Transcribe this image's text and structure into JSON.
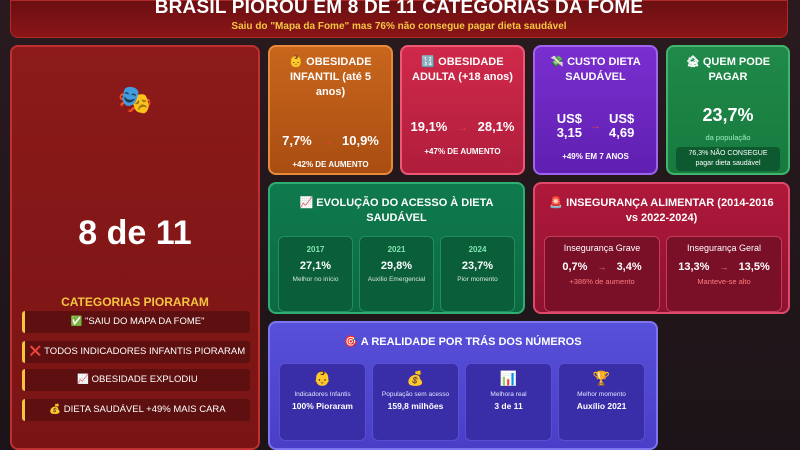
{
  "header": {
    "title": "BRASIL PIOROU EM 8 DE 11 CATEGORIAS DA FOME",
    "subtitle": "Saiu do \"Mapa da Fome\" mas 76% não consegue pagar dieta saudável"
  },
  "left": {
    "icon": "🎭",
    "big": "8 de 11",
    "label": "CATEGORIAS PIORARAM",
    "pills": [
      "✅ \"SAIU DO MAPA DA FOME\"",
      "❌ TODOS INDICADORES INFANTIS PIORARAM",
      "📈 OBESIDADE EXPLODIU",
      "💰 DIETA SAUDÁVEL +49% MAIS CARA"
    ]
  },
  "obesidade_infantil": {
    "title": "👶 OBESIDADE INFANTIL (até 5 anos)",
    "from": "7,7%",
    "arrow": "→",
    "to": "10,9%",
    "note": "+42% DE AUMENTO"
  },
  "obesidade_adulta": {
    "title": "🔢 OBESIDADE ADULTA (+18 anos)",
    "from": "19,1%",
    "arrow": "→",
    "to": "28,1%",
    "note": "+47% DE AUMENTO"
  },
  "custo": {
    "title": "💸 CUSTO DIETA SAUDÁVEL",
    "from_cur": "US$",
    "from_val": "3,15",
    "arrow": "→",
    "to_cur": "US$",
    "to_val": "4,69",
    "note": "+49% EM 7 ANOS"
  },
  "quem": {
    "title": "🏚 QUEM PODE PAGAR",
    "value": "23,7%",
    "sub": "da população",
    "note_line1": "76,3% NÃO CONSEGUE",
    "note_line2": "pagar dieta saudável"
  },
  "evolucao": {
    "title": "📈 EVOLUÇÃO DO ACESSO À DIETA SAUDÁVEL",
    "items": [
      {
        "year": "2017",
        "value": "27,1%",
        "desc": "Melhor no início"
      },
      {
        "year": "2021",
        "value": "29,8%",
        "desc": "Auxílio Emergencial"
      },
      {
        "year": "2024",
        "value": "23,7%",
        "desc": "Pior momento"
      }
    ]
  },
  "inseguranca": {
    "title": "🚨 INSEGURANÇA ALIMENTAR (2014-2016 vs 2022-2024)",
    "items": [
      {
        "label": "Insegurança Grave",
        "from": "0,7%",
        "arrow": "→",
        "to": "3,4%",
        "note": "+386% de aumento"
      },
      {
        "label": "Insegurança Geral",
        "from": "13,3%",
        "arrow": "→",
        "to": "13,5%",
        "note": "Manteve-se alto"
      }
    ]
  },
  "realidade": {
    "title": "🎯 A REALIDADE POR TRÁS DOS NÚMEROS",
    "items": [
      {
        "icon": "👶",
        "label": "Indicadores Infantis",
        "value": "100% Pioraram"
      },
      {
        "icon": "💰",
        "label": "População sem acesso",
        "value": "159,8 milhões"
      },
      {
        "icon": "📊",
        "label": "Melhora real",
        "value": "3 de 11"
      },
      {
        "icon": "🏆",
        "label": "Melhor momento",
        "value": "Auxílio 2021"
      }
    ]
  },
  "colors": {
    "accent_yellow": "#f5c542",
    "arrow_red": "#e84040"
  }
}
